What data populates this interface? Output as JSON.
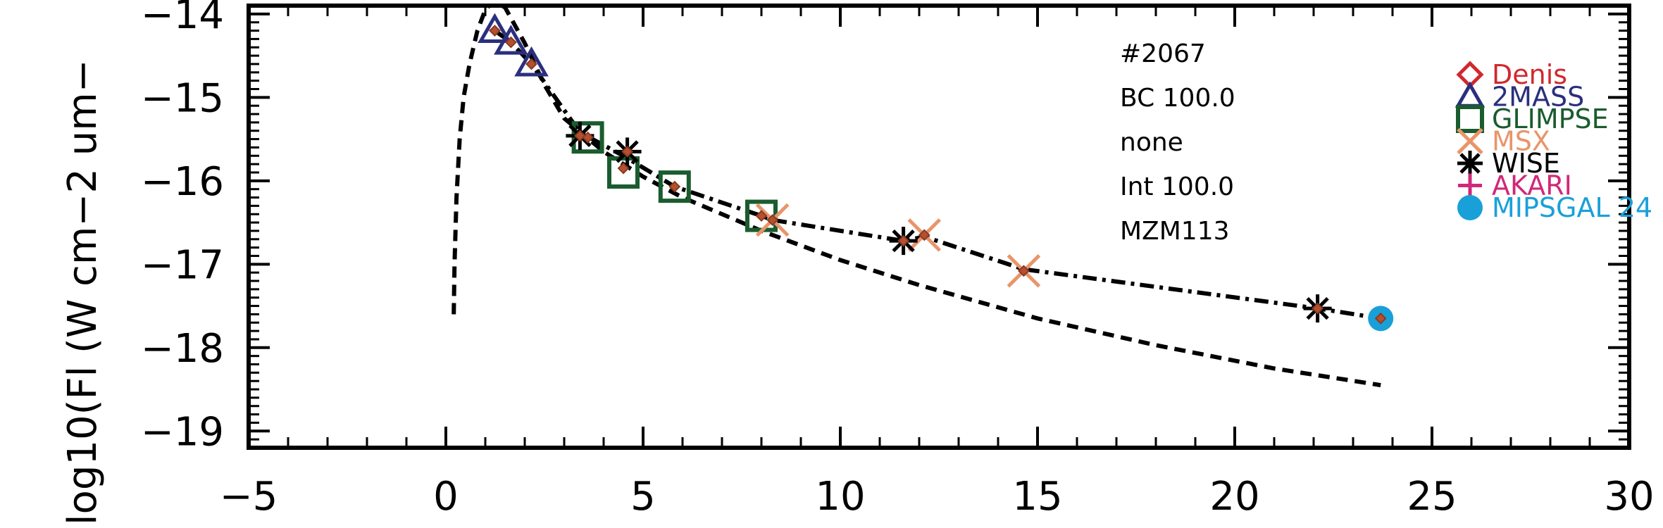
{
  "chart_data": {
    "type": "scatter",
    "title": "",
    "xlabel": "",
    "ylabel": "log10(Fl (W cm−2 um−",
    "xlim": [
      -5,
      30
    ],
    "ylim": [
      -19.2,
      -13.9
    ],
    "x_ticks": [
      -5,
      0,
      5,
      10,
      15,
      20,
      25,
      30
    ],
    "x_tick_labels": [
      "−5",
      "0",
      "5",
      "10",
      "15",
      "20",
      "25",
      "30"
    ],
    "y_ticks": [
      -19,
      -18,
      -17,
      -16,
      -15,
      -14
    ],
    "y_tick_labels": [
      "−19",
      "−18",
      "−17",
      "−16",
      "−15",
      "−14"
    ],
    "info_lines": [
      "#2067",
      "BC 100.0",
      "none",
      "Int 100.0",
      "MZM113"
    ],
    "legend": [
      {
        "name": "Denis",
        "color": "#d1282e",
        "marker": "diamond"
      },
      {
        "name": "2MASS",
        "color": "#2b2f7d",
        "marker": "triangle"
      },
      {
        "name": "GLIMPSE",
        "color": "#1a5c2e",
        "marker": "square"
      },
      {
        "name": "MSX",
        "color": "#e8956a",
        "marker": "x"
      },
      {
        "name": "WISE",
        "color": "#000000",
        "marker": "asterisk"
      },
      {
        "name": "AKARI",
        "color": "#d0287a",
        "marker": "plus"
      },
      {
        "name": "MIPSGAL 24",
        "color": "#1aa0d8",
        "marker": "circle"
      }
    ],
    "series": [
      {
        "name": "2MASS",
        "marker": "triangle",
        "color": "#2b2f7d",
        "x": [
          1.24,
          1.65,
          2.17
        ],
        "y": [
          -14.2,
          -14.34,
          -14.6
        ]
      },
      {
        "name": "GLIMPSE",
        "marker": "square",
        "color": "#1a5c2e",
        "x": [
          3.6,
          4.5,
          5.8,
          8.0
        ],
        "y": [
          -15.48,
          -15.9,
          -16.07,
          -16.42
        ]
      },
      {
        "name": "MSX",
        "marker": "x",
        "color": "#e8956a",
        "x": [
          8.28,
          12.13,
          14.65
        ],
        "y": [
          -16.47,
          -16.65,
          -17.08
        ]
      },
      {
        "name": "WISE",
        "marker": "asterisk",
        "color": "#000000",
        "x": [
          3.4,
          4.6,
          11.6,
          22.1
        ],
        "y": [
          -15.46,
          -15.65,
          -16.72,
          -17.53
        ]
      },
      {
        "name": "MIPSGAL 24",
        "marker": "circle",
        "color": "#1aa0d8",
        "x": [
          23.7
        ],
        "y": [
          -17.65
        ]
      },
      {
        "name": "",
        "marker": "small-diamond",
        "color": "#b5502f",
        "x": [
          1.24,
          1.65,
          2.17,
          3.4,
          3.6,
          4.5,
          4.6,
          5.8,
          8.0,
          8.28,
          11.6,
          12.13,
          14.65,
          22.1,
          23.7
        ],
        "y": [
          -14.2,
          -14.34,
          -14.6,
          -15.46,
          -15.48,
          -15.85,
          -15.65,
          -16.07,
          -16.42,
          -16.47,
          -16.72,
          -16.65,
          -17.08,
          -17.53,
          -17.65
        ]
      },
      {
        "name": "",
        "line": "dashdot",
        "color": "#000000",
        "x": [
          1.24,
          1.65,
          2.17,
          3.4,
          4.5,
          5.8,
          8.0,
          8.28,
          11.6,
          12.13,
          14.65,
          22.1,
          23.7
        ],
        "y": [
          -14.2,
          -14.34,
          -14.6,
          -15.42,
          -15.7,
          -16.07,
          -16.42,
          -16.47,
          -16.72,
          -16.67,
          -17.06,
          -17.53,
          -17.65
        ]
      },
      {
        "name": "",
        "line": "dashed",
        "color": "#000000",
        "x": [
          0.2,
          0.22,
          0.27,
          0.35,
          0.45,
          0.6,
          0.8,
          1.0,
          1.2,
          1.5,
          2.0,
          2.5,
          3.0,
          4.0,
          5.0,
          6.0,
          8.0,
          10.0,
          12.0,
          15.0,
          18.0,
          21.0,
          23.7
        ],
        "y": [
          -17.6,
          -17.0,
          -16.2,
          -15.5,
          -15.0,
          -14.6,
          -14.2,
          -13.95,
          -13.85,
          -13.92,
          -14.35,
          -14.85,
          -15.25,
          -15.65,
          -15.95,
          -16.2,
          -16.6,
          -16.95,
          -17.25,
          -17.65,
          -17.97,
          -18.25,
          -18.45
        ]
      }
    ]
  }
}
